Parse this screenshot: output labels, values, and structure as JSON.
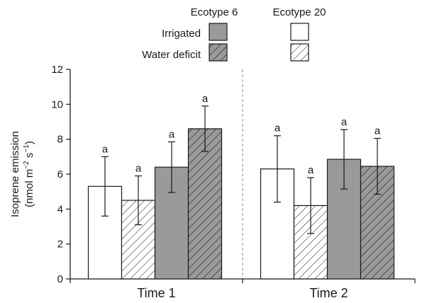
{
  "chart_data": {
    "type": "bar",
    "categories": [
      "Time 1",
      "Time 2"
    ],
    "ylabel_line1": "Isoprene emission",
    "ylabel_line2_prefix": "(nmol m",
    "ylabel_line2_sup1": "−2",
    "ylabel_line2_mid": " s",
    "ylabel_line2_sup2": "−1",
    "ylabel_line2_suffix": ")",
    "ylim": [
      0,
      12
    ],
    "yticks": [
      0,
      2,
      4,
      6,
      8,
      10,
      12
    ],
    "legend": {
      "ecotypes": [
        "Ecotype 6",
        "Ecotype 20"
      ],
      "treatments": [
        "Irrigated",
        "Water deficit"
      ]
    },
    "series": [
      {
        "ecotype": "Ecotype 20",
        "treatment": "Irrigated",
        "fill": "#ffffff",
        "hatched": false,
        "values": [
          5.3,
          6.3
        ],
        "errors": [
          1.7,
          1.9
        ],
        "labels": [
          "a",
          "a"
        ]
      },
      {
        "ecotype": "Ecotype 20",
        "treatment": "Water deficit",
        "fill": "#ffffff",
        "hatched": true,
        "values": [
          4.5,
          4.2
        ],
        "errors": [
          1.4,
          1.6
        ],
        "labels": [
          "a",
          "a"
        ]
      },
      {
        "ecotype": "Ecotype 6",
        "treatment": "Irrigated",
        "fill": "#9a9a9a",
        "hatched": false,
        "values": [
          6.4,
          6.85
        ],
        "errors": [
          1.45,
          1.7
        ],
        "labels": [
          "a",
          "a"
        ]
      },
      {
        "ecotype": "Ecotype 6",
        "treatment": "Water deficit",
        "fill": "#9a9a9a",
        "hatched": true,
        "values": [
          8.6,
          6.45
        ],
        "errors": [
          1.3,
          1.6
        ],
        "labels": [
          "a",
          "a"
        ]
      }
    ],
    "separator": "dashed vertical line between Time 1 and Time 2",
    "grid": false
  }
}
